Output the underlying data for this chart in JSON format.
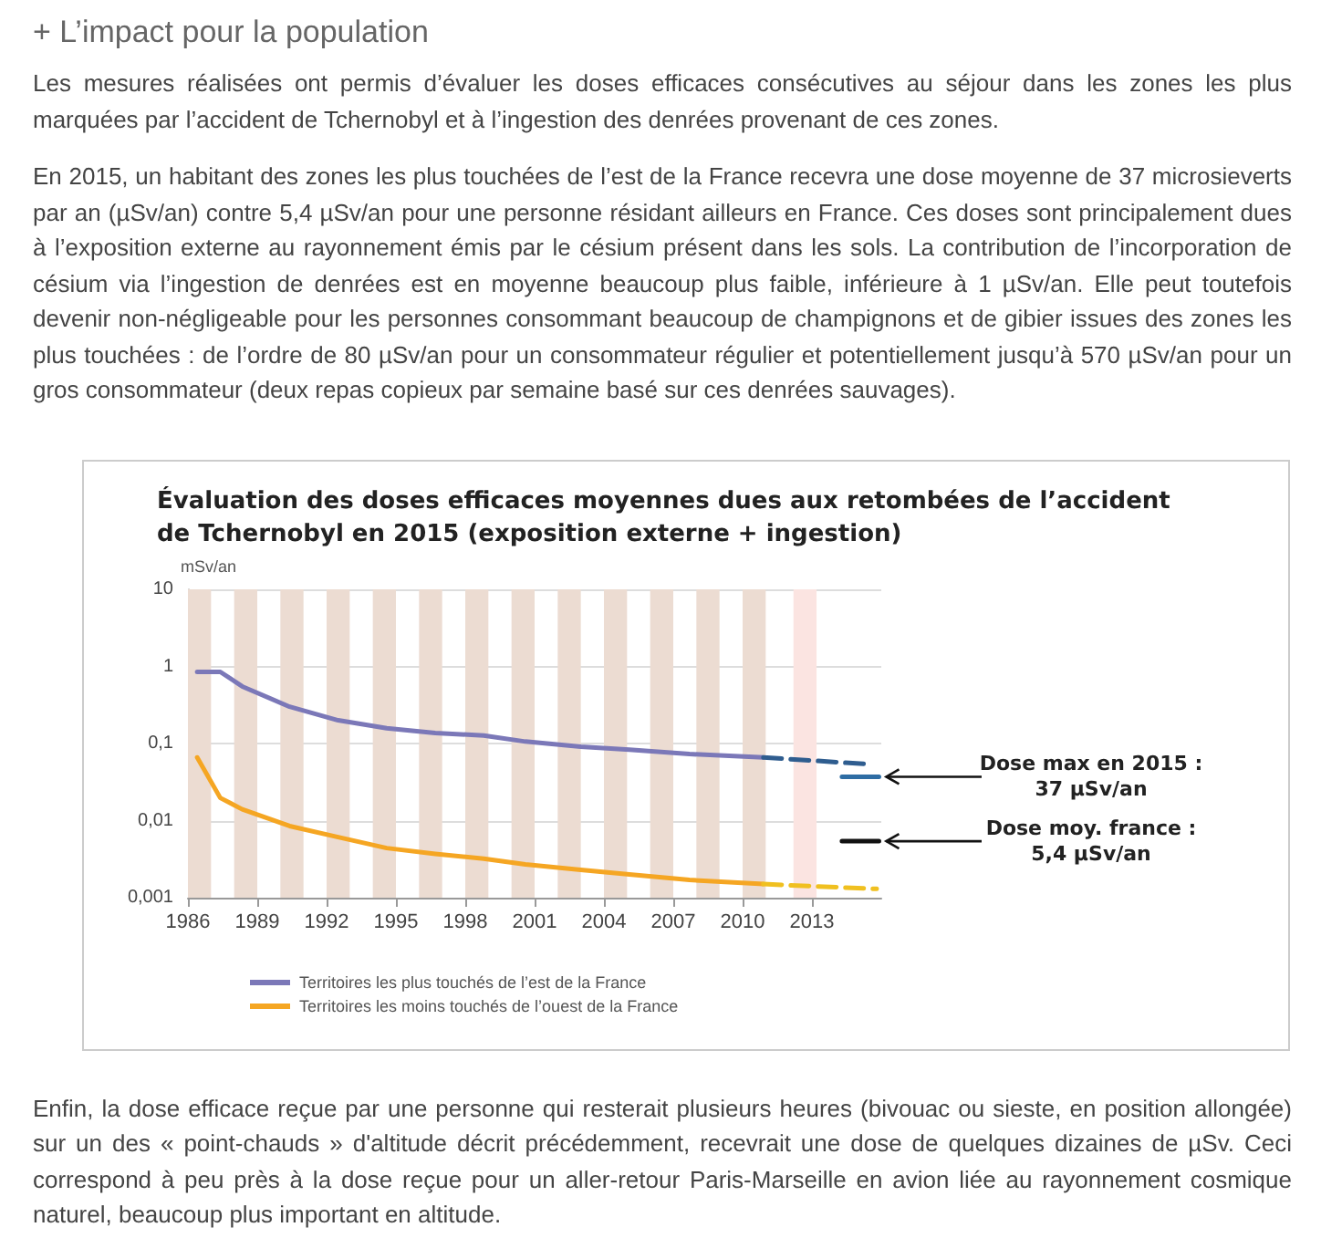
{
  "chart_data": {
    "type": "line",
    "title": "Évaluation des doses efficaces moyennes dues aux retombées de l’accident de Tchernobyl en 2015 (exposition externe + ingestion)",
    "ylabel": "mSv/an",
    "annotations": [
      "+ L’impact pour la population",
      "Les mesures réalisées ont permis d’évaluer les doses efficaces consécutives au séjour dans les zones les plus marquées par l’accident de Tchernobyl et à l’ingestion des denrées provenant de ces zones.",
      "En 2015, un habitant des zones les plus touchées de l’est de la France recevra une dose moyenne de 37 microsieverts par an (µSv/an) contre 5,4 µSv/an pour une personne résidant ailleurs en France. Ces doses sont principalement dues à l’exposition externe au rayonnement émis par le césium présent dans les sols. La contribution de l’incorporation de césium via l’ingestion de denrées est en moyenne beaucoup plus faible, inférieure à 1 µSv/an. Elle peut toutefois devenir non-négligeable pour les personnes consommant beaucoup de champignons et de gibier issues des zones les plus touchées : de l’ordre de 80 µSv/an pour un consommateur régulier et potentiellement jusqu’à 570 µSv/an pour un gros consommateur (deux repas copieux par semaine basé sur ces denrées sauvages).",
      "Enfin, la dose efficace reçue par une personne qui resterait plusieurs heures (bivouac ou sieste, en position allongée) sur un des « point-chauds » d'altitude décrit précédemment, recevrait une dose de quelques dizaines de µSv. Ceci correspond à peu près à la dose reçue pour un aller-retour Paris-Marseille en avion liée au rayonnement cosmique naturel, beaucoup plus important en altitude.",
      "Dose max en 2015 :\n37 µSv/an",
      "Dose moy. france :\n5,4 µSv/an"
    ],
    "series": [
      {
        "name": "Territoires les plus touchés de l’est de la France",
        "color": "#7b78b8",
        "x": [
          1986.4,
          1987.4,
          1988.35,
          1990.4,
          1992.5,
          1994.6,
          1996.7,
          1998.8,
          2000.6,
          2003.0,
          2005.1,
          2007.7,
          2010.9
        ],
        "values": [
          0.85,
          0.85,
          0.55,
          0.3,
          0.2,
          0.158,
          0.137,
          0.127,
          0.106,
          0.091,
          0.083,
          0.073,
          0.066
        ]
      },
      {
        "name": "Territoires les moins touchés de l’ouest de la France",
        "color": "#f5a623",
        "x": [
          1986.4,
          1987.4,
          1988.35,
          1990.4,
          1992.5,
          1994.6,
          1996.7,
          1998.8,
          2000.6,
          2003.0,
          2005.1,
          2007.7,
          2010.9
        ],
        "values": [
          0.066,
          0.0197,
          0.014,
          0.0085,
          0.0061,
          0.0044,
          0.0037,
          0.0032,
          0.0027,
          0.0023,
          0.002,
          0.0017,
          0.0015
        ]
      },
      {
        "color": "#2f5d8f",
        "line_style": "dashed",
        "x": [
          2010.9,
          2015.4
        ],
        "values": [
          0.066,
          0.054
        ]
      },
      {
        "color": "#f0c020",
        "line_style": "dashed",
        "x": [
          2010.9,
          2015.8
        ],
        "values": [
          0.0015,
          0.0013
        ]
      },
      {
        "color": "#2e6da4",
        "x": [
          2014.3,
          2015.9
        ],
        "values": [
          0.037,
          0.037
        ]
      },
      {
        "color": "#111111",
        "x": [
          2014.3,
          2015.9
        ],
        "values": [
          0.0054,
          0.0054
        ]
      }
    ],
    "bands": [
      {
        "axis": "x",
        "from": 1986,
        "to": 1987,
        "color": "#ecdcd2"
      },
      {
        "axis": "x",
        "from": 1988,
        "to": 1989,
        "color": "#ecdcd2"
      },
      {
        "axis": "x",
        "from": 1990,
        "to": 1991,
        "color": "#ecdcd2"
      },
      {
        "axis": "x",
        "from": 1992,
        "to": 1993,
        "color": "#ecdcd2"
      },
      {
        "axis": "x",
        "from": 1994,
        "to": 1995,
        "color": "#ecdcd2"
      },
      {
        "axis": "x",
        "from": 1996,
        "to": 1997,
        "color": "#ecdcd2"
      },
      {
        "axis": "x",
        "from": 1998,
        "to": 1999,
        "color": "#ecdcd2"
      },
      {
        "axis": "x",
        "from": 2000,
        "to": 2001,
        "color": "#ecdcd2"
      },
      {
        "axis": "x",
        "from": 2002,
        "to": 2003,
        "color": "#ecdcd2"
      },
      {
        "axis": "x",
        "from": 2004,
        "to": 2005,
        "color": "#ecdcd2"
      },
      {
        "axis": "x",
        "from": 2006,
        "to": 2007,
        "color": "#ecdcd2"
      },
      {
        "axis": "x",
        "from": 2008,
        "to": 2009,
        "color": "#ecdcd2"
      },
      {
        "axis": "x",
        "from": 2010,
        "to": 2011,
        "color": "#ecdcd2"
      },
      {
        "axis": "x",
        "from": 2012.2,
        "to": 2013.2,
        "color": "#fbe4e1"
      }
    ],
    "log": "y",
    "xlim": [
      1986,
      2016
    ],
    "xticks": [
      1986,
      1989,
      1992,
      1995,
      1998,
      2001,
      2004,
      2007,
      2010,
      2013
    ],
    "ylim": [
      0.001,
      10
    ],
    "yticks": [
      {
        "value": 0.001,
        "label": "0,001"
      },
      {
        "value": 0.01,
        "label": "0,01"
      },
      {
        "value": 0.1,
        "label": "0,1"
      },
      1,
      10
    ],
    "grid": "y",
    "legend": "bottom left"
  }
}
